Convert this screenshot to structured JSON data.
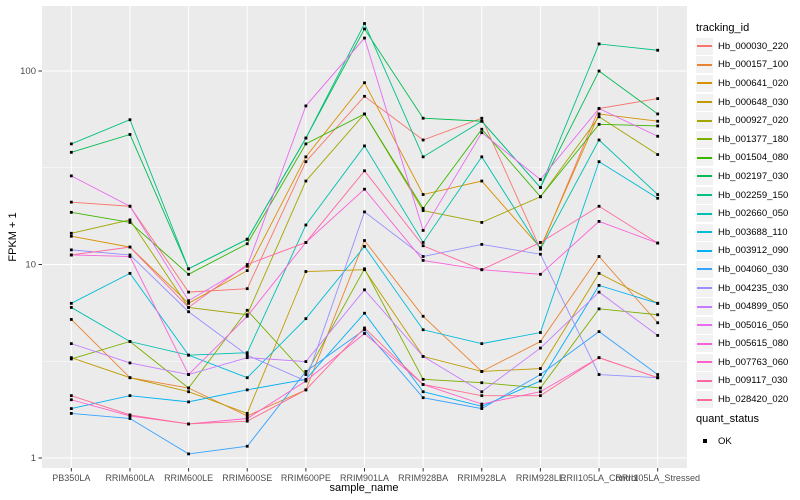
{
  "chart_data": {
    "type": "line",
    "title": "",
    "xlabel": "sample_name",
    "ylabel": "FPKM + 1",
    "y_scale": "log10",
    "ylim": [
      1,
      200
    ],
    "grid": true,
    "legend": {
      "title": "tracking_id",
      "position": "right"
    },
    "quant_status": {
      "title": "quant_status",
      "items": [
        {
          "label": "OK",
          "shape": "filled-square",
          "color": "#000000"
        }
      ]
    },
    "panel_bg": "#EBEBEB",
    "grid_color": "#FFFFFF",
    "axis_text_color": "#4D4D4D",
    "tick_mark_color": "#333333",
    "point_color": "#000000",
    "y_major_ticks": [
      1,
      10,
      100
    ],
    "y_tick_labels": [
      "1",
      "10",
      "100"
    ],
    "y_minor_ticks": [
      3.162,
      31.62
    ],
    "categories": [
      "PB350LA",
      "RRIM600LA",
      "RRIM600LE",
      "RRIM600SE",
      "RRIM600PE",
      "RRIM901LA",
      "RRIM928BA",
      "RRIM928LA",
      "RRIM928LE",
      "RRII105LA_Control",
      "RRII105LA_Stressed"
    ],
    "series": [
      {
        "name": "Hb_000030_220",
        "color": "#F8766D",
        "values": [
          21,
          20,
          7.2,
          7.5,
          34,
          74,
          44,
          57,
          12,
          64,
          72
        ]
      },
      {
        "name": "Hb_000157_100",
        "color": "#EA8331",
        "values": [
          5.2,
          2.6,
          2.3,
          1.65,
          2.25,
          13.3,
          5.4,
          2.8,
          4.0,
          11,
          5.0
        ]
      },
      {
        "name": "Hb_000641_020",
        "color": "#D89000",
        "values": [
          14,
          12.3,
          6.3,
          9.3,
          36,
          87,
          23,
          27,
          12.2,
          60,
          55
        ]
      },
      {
        "name": "Hb_000648_030",
        "color": "#C09B00",
        "values": [
          3.3,
          2.6,
          2.2,
          1.7,
          9.2,
          9.4,
          3.35,
          2.8,
          2.9,
          9.0,
          6.3
        ]
      },
      {
        "name": "Hb_000927_020",
        "color": "#A3A500",
        "values": [
          14.5,
          17,
          6.0,
          5.5,
          27,
          60,
          19,
          16.5,
          22.4,
          58,
          37
        ]
      },
      {
        "name": "Hb_001377_180",
        "color": "#7CAE00",
        "values": [
          3.25,
          4.0,
          2.3,
          5.8,
          2.7,
          9.5,
          2.55,
          2.45,
          2.3,
          5.9,
          5.5
        ]
      },
      {
        "name": "Hb_001504_080",
        "color": "#39B600",
        "values": [
          18.6,
          16.5,
          8.9,
          12.8,
          42,
          60,
          19.5,
          50,
          22.4,
          53,
          52
        ]
      },
      {
        "name": "Hb_002197_030",
        "color": "#00BB4E",
        "values": [
          38,
          47,
          9.5,
          13.5,
          45,
          165,
          57,
          55,
          25,
          100,
          60
        ]
      },
      {
        "name": "Hb_002259_150",
        "color": "#00C087",
        "values": [
          42,
          56,
          9.5,
          13.5,
          45,
          176,
          36,
          55,
          25,
          138,
          128
        ]
      },
      {
        "name": "Hb_002660_050",
        "color": "#00C0AF",
        "values": [
          6.0,
          4.0,
          3.4,
          3.5,
          16,
          41,
          13,
          36,
          12,
          44,
          23
        ]
      },
      {
        "name": "Hb_003688_110",
        "color": "#00BCD8",
        "values": [
          6.3,
          9.0,
          3.4,
          2.6,
          5.25,
          12.4,
          4.6,
          3.9,
          4.45,
          34,
          22
        ]
      },
      {
        "name": "Hb_003912_090",
        "color": "#00B0F6",
        "values": [
          1.8,
          2.1,
          1.95,
          2.25,
          2.55,
          5.6,
          2.2,
          1.85,
          2.5,
          7.8,
          6.3
        ]
      },
      {
        "name": "Hb_004060_030",
        "color": "#35A2FF",
        "values": [
          1.7,
          1.6,
          1.05,
          1.15,
          2.8,
          4.6,
          2.05,
          1.8,
          2.7,
          4.5,
          2.7
        ]
      },
      {
        "name": "Hb_004235_030",
        "color": "#9590FF",
        "values": [
          11.9,
          11.2,
          5.7,
          3.4,
          2.5,
          18.7,
          11,
          12.7,
          11.3,
          2.7,
          2.6
        ]
      },
      {
        "name": "Hb_004899_050",
        "color": "#C77CFF",
        "values": [
          3.9,
          3.1,
          2.7,
          3.3,
          3.15,
          7.4,
          3.35,
          2.2,
          3.7,
          7.2,
          4.3
        ]
      },
      {
        "name": "Hb_005016_050",
        "color": "#E76BF3",
        "values": [
          28.7,
          20,
          6.5,
          9.8,
          66,
          148,
          15,
          48,
          27.5,
          64,
          46
        ]
      },
      {
        "name": "Hb_005615_080",
        "color": "#FA62DB",
        "values": [
          11.2,
          11.0,
          2.7,
          5.4,
          13,
          24.5,
          10.5,
          9.4,
          8.9,
          16.7,
          12.9
        ]
      },
      {
        "name": "Hb_007763_060",
        "color": "#FF61CC",
        "values": [
          2.0,
          1.65,
          1.5,
          1.6,
          2.5,
          4.4,
          2.4,
          1.9,
          2.2,
          3.3,
          2.6
        ]
      },
      {
        "name": "Hb_009117_030",
        "color": "#FF67A4",
        "values": [
          11.2,
          12.3,
          6.0,
          10,
          13,
          30.5,
          12.5,
          9.4,
          13,
          20,
          12.9
        ]
      },
      {
        "name": "Hb_028420_020",
        "color": "#FF6C91",
        "values": [
          2.1,
          1.67,
          1.5,
          1.55,
          2.25,
          4.7,
          2.4,
          2.1,
          2.1,
          3.3,
          2.6
        ]
      }
    ]
  }
}
